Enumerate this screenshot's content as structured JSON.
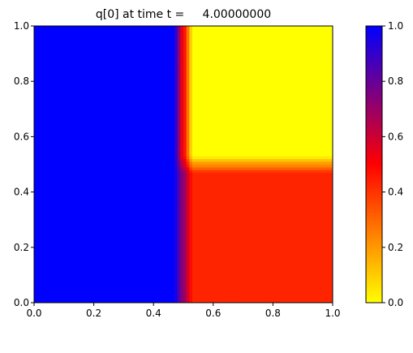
{
  "chart_data": {
    "type": "heatmap",
    "title": "q[0] at time t =     4.00000000",
    "xlabel": "",
    "ylabel": "",
    "xlim": [
      0.0,
      1.0
    ],
    "ylim": [
      0.0,
      1.0
    ],
    "x_ticks": [
      "0.0",
      "0.2",
      "0.4",
      "0.6",
      "0.8",
      "1.0"
    ],
    "y_ticks": [
      "0.0",
      "0.2",
      "0.4",
      "0.6",
      "0.8",
      "1.0"
    ],
    "grid": false,
    "colorbar": {
      "range": [
        0.0,
        1.0
      ],
      "ticks": [
        "0.0",
        "0.2",
        "0.4",
        "0.6",
        "0.8",
        "1.0"
      ],
      "colormap": [
        {
          "value": 0.0,
          "color": "#ffff00"
        },
        {
          "value": 0.5,
          "color": "#ff0000"
        },
        {
          "value": 1.0,
          "color": "#0000ff"
        }
      ]
    },
    "regions": [
      {
        "name": "left",
        "x": [
          0.0,
          0.5
        ],
        "y": [
          0.0,
          1.0
        ],
        "value": 1.0
      },
      {
        "name": "upper-right",
        "x": [
          0.5,
          1.0
        ],
        "y": [
          0.5,
          1.0
        ],
        "value": 0.0
      },
      {
        "name": "lower-right",
        "x": [
          0.5,
          1.0
        ],
        "y": [
          0.0,
          0.5
        ],
        "value": 0.43
      }
    ]
  }
}
